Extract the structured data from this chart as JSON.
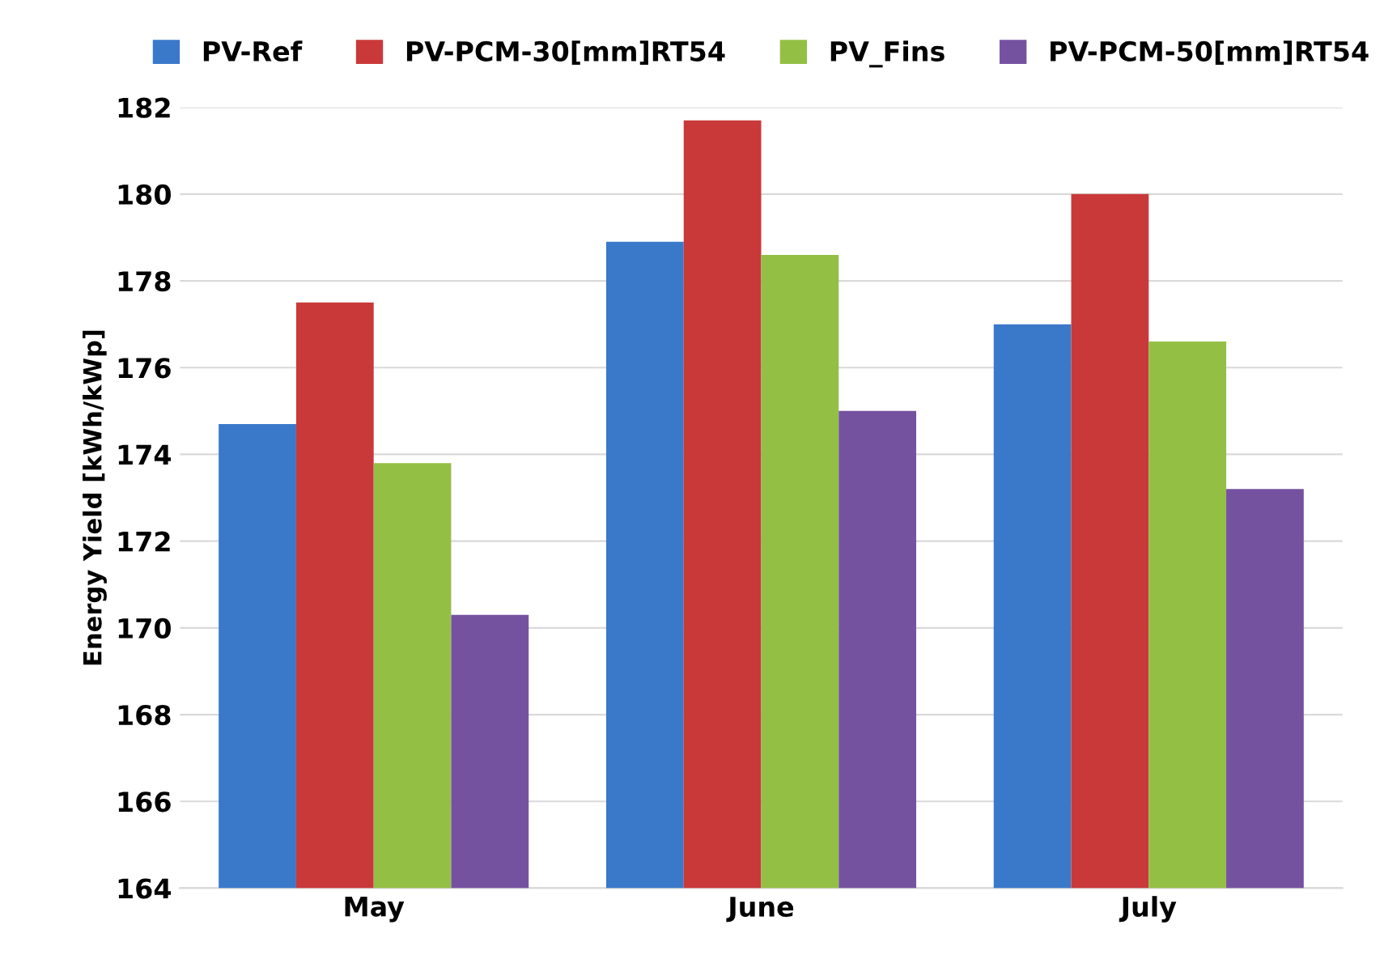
{
  "chart_data": {
    "type": "bar",
    "ylabel": "Energy Yield [kWh/kWp]",
    "categories": [
      "May",
      "June",
      "July"
    ],
    "series": [
      {
        "name": "PV-Ref",
        "color": "#3a78c9",
        "values": [
          174.7,
          178.9,
          177.0
        ]
      },
      {
        "name": "PV-PCM-30[mm]RT54",
        "color": "#c9393a",
        "values": [
          177.5,
          181.7,
          180.0
        ]
      },
      {
        "name": "PV_Fins",
        "color": "#94bf45",
        "values": [
          173.8,
          178.6,
          176.6
        ]
      },
      {
        "name": "PV-PCM-50[mm]RT54",
        "color": "#7552a0",
        "values": [
          170.3,
          175.0,
          173.2
        ]
      }
    ],
    "ylim": [
      164,
      182
    ],
    "yticks": [
      164,
      166,
      168,
      170,
      172,
      174,
      176,
      178,
      180,
      182
    ],
    "grid": "y",
    "legend": "top"
  }
}
